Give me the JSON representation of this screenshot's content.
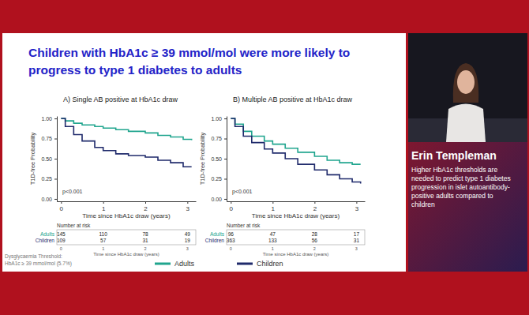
{
  "slide_title": [
    "Children with HbA1c ≥ 39 mmol/mol were more likely to",
    "progress to type 1 diabetes to adults"
  ],
  "footnote": [
    "Dysglycaemia Threshold:",
    "HbA1c ≥ 39 mmol/mol (5.7%)"
  ],
  "speaker": {
    "name": "Erin Templeman",
    "caption": [
      "Higher HbA1c thresholds are",
      "needed to predict type 1 diabetes",
      "progression in islet autoantibody-",
      "positive adults compared to",
      "children"
    ]
  },
  "chart_data": [
    {
      "type": "line",
      "title": "A) Single AB positive at HbA1c draw",
      "x_label": "Time since HbA1c draw (years)",
      "y_label": "T1D-free Probability",
      "xlim": [
        -0.1,
        3.2
      ],
      "ylim": [
        -0.03,
        1.03
      ],
      "xticks": [
        0,
        1,
        2,
        3
      ],
      "yticks": [
        {
          "value": 0,
          "label": "0.00"
        },
        {
          "value": 0.25,
          "label": "0.25"
        },
        {
          "value": 0.5,
          "label": "0.50"
        },
        {
          "value": 0.75,
          "label": "0.75"
        },
        {
          "value": 1,
          "label": "1.00"
        }
      ],
      "grid": false,
      "legend": "bottom",
      "annotations": [
        "p<0.001"
      ],
      "series": [
        {
          "name": "Adults",
          "color": "#20a58e",
          "line_style": "step",
          "x": [
            0,
            0.1,
            0.3,
            0.5,
            0.8,
            1.0,
            1.3,
            1.6,
            2.0,
            2.3,
            2.6,
            2.9,
            3.1
          ],
          "values": [
            1,
            0.97,
            0.94,
            0.92,
            0.9,
            0.88,
            0.86,
            0.84,
            0.82,
            0.79,
            0.77,
            0.74,
            0.73
          ]
        },
        {
          "name": "Children",
          "color": "#1f2a6b",
          "line_style": "step",
          "x": [
            0,
            0.1,
            0.3,
            0.5,
            0.8,
            1.0,
            1.3,
            1.6,
            2.0,
            2.3,
            2.6,
            2.9,
            3.1
          ],
          "values": [
            1,
            0.9,
            0.8,
            0.72,
            0.64,
            0.6,
            0.56,
            0.54,
            0.52,
            0.48,
            0.45,
            0.4,
            0.4
          ]
        }
      ],
      "risk_table": {
        "title": "Number at risk",
        "x_label": "Time since HbA1c draw (years)",
        "x": [
          0,
          1,
          2,
          3
        ],
        "rows": [
          {
            "name": "Adults",
            "values": [
              145,
              110,
              78,
              49
            ]
          },
          {
            "name": "Children",
            "values": [
              109,
              57,
              31,
              19
            ]
          }
        ]
      }
    },
    {
      "type": "line",
      "title": "B) Multiple AB positive at HbA1c draw",
      "x_label": "Time since HbA1c draw (years)",
      "y_label": "T1D-free Probability",
      "xlim": [
        -0.1,
        3.2
      ],
      "ylim": [
        -0.03,
        1.03
      ],
      "xticks": [
        0,
        1,
        2,
        3
      ],
      "yticks": [
        {
          "value": 0,
          "label": "0.00"
        },
        {
          "value": 0.25,
          "label": "0.25"
        },
        {
          "value": 0.5,
          "label": "0.50"
        },
        {
          "value": 0.75,
          "label": "0.75"
        },
        {
          "value": 1,
          "label": "1.00"
        }
      ],
      "grid": false,
      "annotations": [
        "p<0.001"
      ],
      "series": [
        {
          "name": "Adults",
          "color": "#20a58e",
          "line_style": "step",
          "x": [
            0,
            0.1,
            0.3,
            0.5,
            0.8,
            1.0,
            1.3,
            1.6,
            2.0,
            2.3,
            2.6,
            2.9,
            3.1
          ],
          "values": [
            1,
            0.93,
            0.84,
            0.78,
            0.72,
            0.68,
            0.63,
            0.58,
            0.53,
            0.48,
            0.45,
            0.43,
            0.43
          ]
        },
        {
          "name": "Children",
          "color": "#1f2a6b",
          "line_style": "step",
          "x": [
            0,
            0.1,
            0.3,
            0.5,
            0.8,
            1.0,
            1.3,
            1.6,
            2.0,
            2.3,
            2.6,
            2.9,
            3.1
          ],
          "values": [
            1,
            0.9,
            0.78,
            0.7,
            0.62,
            0.57,
            0.5,
            0.43,
            0.36,
            0.3,
            0.25,
            0.21,
            0.19
          ]
        }
      ],
      "risk_table": {
        "title": "Number at risk",
        "x_label": "Time since HbA1c draw (years)",
        "x": [
          0,
          1,
          2,
          3
        ],
        "rows": [
          {
            "name": "Adults",
            "values": [
              96,
              47,
              28,
              17
            ]
          },
          {
            "name": "Children",
            "values": [
              363,
              133,
              56,
              31
            ]
          }
        ]
      }
    }
  ]
}
